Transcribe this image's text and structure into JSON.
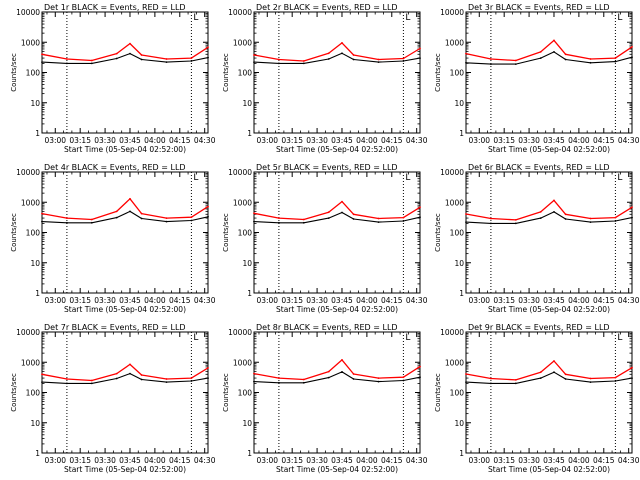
{
  "figure": {
    "panel_titles": [
      "Det 1r BLACK = Events, RED = LLD",
      "Det 2r BLACK = Events, RED = LLD",
      "Det 3r BLACK = Events, RED = LLD",
      "Det 4r BLACK = Events, RED = LLD",
      "Det 5r BLACK = Events, RED = LLD",
      "Det 6r BLACK = Events, RED = LLD",
      "Det 7r BLACK = Events, RED = LLD",
      "Det 8r BLACK = Events, RED = LLD",
      "Det 9r BLACK = Events, RED = LLD"
    ],
    "marker_label": "L",
    "colors": {
      "events": "#000000",
      "lld": "#ff0000",
      "axes": "#000000",
      "background": "#ffffff"
    }
  },
  "chart_data": [
    {
      "type": "line",
      "title": "Det 1r BLACK = Events, RED = LLD",
      "xlabel": "Start Time (05-Sep-04 02:52:00)",
      "ylabel": "Counts/sec",
      "x": [
        "02:52",
        "03:07",
        "03:22",
        "03:37",
        "03:45",
        "03:52",
        "04:07",
        "04:22",
        "04:32"
      ],
      "series": [
        {
          "name": "Events",
          "color": "#000000",
          "values": [
            220,
            200,
            200,
            290,
            420,
            270,
            220,
            240,
            310
          ]
        },
        {
          "name": "LLD",
          "color": "#ff0000",
          "values": [
            400,
            280,
            250,
            420,
            900,
            380,
            280,
            300,
            680
          ]
        }
      ],
      "xlim": [
        "02:52",
        "04:32"
      ],
      "xticks": [
        "03:00",
        "03:15",
        "03:30",
        "03:45",
        "04:00",
        "04:15",
        "04:30"
      ],
      "yscale": "log",
      "ylim": [
        1,
        10000
      ],
      "yticks": [
        "1",
        "10",
        "100",
        "1000",
        "10000"
      ],
      "vlines": [
        "03:07",
        "04:22"
      ],
      "grid": false,
      "legend": "none"
    },
    {
      "type": "line",
      "title": "Det 2r BLACK = Events, RED = LLD",
      "xlabel": "Start Time (05-Sep-04 02:52:00)",
      "ylabel": "Counts/sec",
      "x": [
        "02:52",
        "03:07",
        "03:22",
        "03:37",
        "03:45",
        "03:52",
        "04:07",
        "04:22",
        "04:32"
      ],
      "series": [
        {
          "name": "Events",
          "color": "#000000",
          "values": [
            220,
            200,
            200,
            280,
            430,
            270,
            220,
            240,
            300
          ]
        },
        {
          "name": "LLD",
          "color": "#ff0000",
          "values": [
            380,
            270,
            240,
            430,
            950,
            380,
            270,
            290,
            620
          ]
        }
      ],
      "xlim": [
        "02:52",
        "04:32"
      ],
      "xticks": [
        "03:00",
        "03:15",
        "03:30",
        "03:45",
        "04:00",
        "04:15",
        "04:30"
      ],
      "yscale": "log",
      "ylim": [
        1,
        10000
      ],
      "yticks": [
        "1",
        "10",
        "100",
        "1000",
        "10000"
      ],
      "vlines": [
        "03:07",
        "04:22"
      ],
      "grid": false,
      "legend": "none"
    },
    {
      "type": "line",
      "title": "Det 3r BLACK = Events, RED = LLD",
      "xlabel": "Start Time (05-Sep-04 02:52:00)",
      "ylabel": "Counts/sec",
      "x": [
        "02:52",
        "03:07",
        "03:22",
        "03:37",
        "03:45",
        "03:52",
        "04:07",
        "04:22",
        "04:32"
      ],
      "series": [
        {
          "name": "Events",
          "color": "#000000",
          "values": [
            210,
            190,
            190,
            300,
            480,
            270,
            210,
            230,
            320
          ]
        },
        {
          "name": "LLD",
          "color": "#ff0000",
          "values": [
            420,
            280,
            250,
            480,
            1150,
            400,
            280,
            300,
            700
          ]
        }
      ],
      "xlim": [
        "02:52",
        "04:32"
      ],
      "xticks": [
        "03:00",
        "03:15",
        "03:30",
        "03:45",
        "04:00",
        "04:15",
        "04:30"
      ],
      "yscale": "log",
      "ylim": [
        1,
        10000
      ],
      "yticks": [
        "1",
        "10",
        "100",
        "1000",
        "10000"
      ],
      "vlines": [
        "03:07",
        "04:22"
      ],
      "grid": false,
      "legend": "none"
    },
    {
      "type": "line",
      "title": "Det 4r BLACK = Events, RED = LLD",
      "xlabel": "Start Time (05-Sep-04 02:52:00)",
      "ylabel": "Counts/sec",
      "x": [
        "02:52",
        "03:07",
        "03:22",
        "03:37",
        "03:45",
        "03:52",
        "04:07",
        "04:22",
        "04:32"
      ],
      "series": [
        {
          "name": "Events",
          "color": "#000000",
          "values": [
            230,
            210,
            210,
            310,
            500,
            290,
            230,
            250,
            330
          ]
        },
        {
          "name": "LLD",
          "color": "#ff0000",
          "values": [
            420,
            300,
            270,
            500,
            1300,
            420,
            300,
            320,
            720
          ]
        }
      ],
      "xlim": [
        "02:52",
        "04:32"
      ],
      "xticks": [
        "03:00",
        "03:15",
        "03:30",
        "03:45",
        "04:00",
        "04:15",
        "04:30"
      ],
      "yscale": "log",
      "ylim": [
        1,
        10000
      ],
      "yticks": [
        "1",
        "10",
        "100",
        "1000",
        "10000"
      ],
      "vlines": [
        "03:07",
        "04:22"
      ],
      "grid": false,
      "legend": "none"
    },
    {
      "type": "line",
      "title": "Det 5r BLACK = Events, RED = LLD",
      "xlabel": "Start Time (05-Sep-04 02:52:00)",
      "ylabel": "Counts/sec",
      "x": [
        "02:52",
        "03:07",
        "03:22",
        "03:37",
        "03:45",
        "03:52",
        "04:07",
        "04:22",
        "04:32"
      ],
      "series": [
        {
          "name": "Events",
          "color": "#000000",
          "values": [
            230,
            210,
            210,
            300,
            460,
            280,
            220,
            240,
            320
          ]
        },
        {
          "name": "LLD",
          "color": "#ff0000",
          "values": [
            430,
            300,
            270,
            470,
            1050,
            400,
            290,
            310,
            680
          ]
        }
      ],
      "xlim": [
        "02:52",
        "04:32"
      ],
      "xticks": [
        "03:00",
        "03:15",
        "03:30",
        "03:45",
        "04:00",
        "04:15",
        "04:30"
      ],
      "yscale": "log",
      "ylim": [
        1,
        10000
      ],
      "yticks": [
        "1",
        "10",
        "100",
        "1000",
        "10000"
      ],
      "vlines": [
        "03:07",
        "04:22"
      ],
      "grid": false,
      "legend": "none"
    },
    {
      "type": "line",
      "title": "Det 6r BLACK = Events, RED = LLD",
      "xlabel": "Start Time (05-Sep-04 02:52:00)",
      "ylabel": "Counts/sec",
      "x": [
        "02:52",
        "03:07",
        "03:22",
        "03:37",
        "03:45",
        "03:52",
        "04:07",
        "04:22",
        "04:32"
      ],
      "series": [
        {
          "name": "Events",
          "color": "#000000",
          "values": [
            220,
            200,
            200,
            300,
            480,
            280,
            220,
            240,
            310
          ]
        },
        {
          "name": "LLD",
          "color": "#ff0000",
          "values": [
            410,
            290,
            260,
            480,
            1150,
            400,
            290,
            310,
            680
          ]
        }
      ],
      "xlim": [
        "02:52",
        "04:32"
      ],
      "xticks": [
        "03:00",
        "03:15",
        "03:30",
        "03:45",
        "04:00",
        "04:15",
        "04:30"
      ],
      "yscale": "log",
      "ylim": [
        1,
        10000
      ],
      "yticks": [
        "1",
        "10",
        "100",
        "1000",
        "10000"
      ],
      "vlines": [
        "03:07",
        "04:22"
      ],
      "grid": false,
      "legend": "none"
    },
    {
      "type": "line",
      "title": "Det 7r BLACK = Events, RED = LLD",
      "xlabel": "Start Time (05-Sep-04 02:52:00)",
      "ylabel": "Counts/sec",
      "x": [
        "02:52",
        "03:07",
        "03:22",
        "03:37",
        "03:45",
        "03:52",
        "04:07",
        "04:22",
        "04:32"
      ],
      "series": [
        {
          "name": "Events",
          "color": "#000000",
          "values": [
            220,
            200,
            200,
            290,
            420,
            270,
            220,
            240,
            300
          ]
        },
        {
          "name": "LLD",
          "color": "#ff0000",
          "values": [
            400,
            280,
            250,
            420,
            850,
            380,
            280,
            300,
            650
          ]
        }
      ],
      "xlim": [
        "02:52",
        "04:32"
      ],
      "xticks": [
        "03:00",
        "03:15",
        "03:30",
        "03:45",
        "04:00",
        "04:15",
        "04:30"
      ],
      "yscale": "log",
      "ylim": [
        1,
        10000
      ],
      "yticks": [
        "1",
        "10",
        "100",
        "1000",
        "10000"
      ],
      "vlines": [
        "03:07",
        "04:22"
      ],
      "grid": false,
      "legend": "none"
    },
    {
      "type": "line",
      "title": "Det 8r BLACK = Events, RED = LLD",
      "xlabel": "Start Time (05-Sep-04 02:52:00)",
      "ylabel": "Counts/sec",
      "x": [
        "02:52",
        "03:07",
        "03:22",
        "03:37",
        "03:45",
        "03:52",
        "04:07",
        "04:22",
        "04:32"
      ],
      "series": [
        {
          "name": "Events",
          "color": "#000000",
          "values": [
            230,
            210,
            210,
            310,
            480,
            280,
            230,
            250,
            320
          ]
        },
        {
          "name": "LLD",
          "color": "#ff0000",
          "values": [
            420,
            300,
            270,
            490,
            1200,
            410,
            300,
            320,
            720
          ]
        }
      ],
      "xlim": [
        "02:52",
        "04:32"
      ],
      "xticks": [
        "03:00",
        "03:15",
        "03:30",
        "03:45",
        "04:00",
        "04:15",
        "04:30"
      ],
      "yscale": "log",
      "ylim": [
        1,
        10000
      ],
      "yticks": [
        "1",
        "10",
        "100",
        "1000",
        "10000"
      ],
      "vlines": [
        "03:07",
        "04:22"
      ],
      "grid": false,
      "legend": "none"
    },
    {
      "type": "line",
      "title": "Det 9r BLACK = Events, RED = LLD",
      "xlabel": "Start Time (05-Sep-04 02:52:00)",
      "ylabel": "Counts/sec",
      "x": [
        "02:52",
        "03:07",
        "03:22",
        "03:37",
        "03:45",
        "03:52",
        "04:07",
        "04:22",
        "04:32"
      ],
      "series": [
        {
          "name": "Events",
          "color": "#000000",
          "values": [
            220,
            200,
            200,
            300,
            470,
            280,
            220,
            240,
            300
          ]
        },
        {
          "name": "LLD",
          "color": "#ff0000",
          "values": [
            410,
            290,
            260,
            470,
            1100,
            400,
            290,
            310,
            660
          ]
        }
      ],
      "xlim": [
        "02:52",
        "04:32"
      ],
      "xticks": [
        "03:00",
        "03:15",
        "03:30",
        "03:45",
        "04:00",
        "04:15",
        "04:30"
      ],
      "yscale": "log",
      "ylim": [
        1,
        10000
      ],
      "yticks": [
        "1",
        "10",
        "100",
        "1000",
        "10000"
      ],
      "vlines": [
        "03:07",
        "04:22"
      ],
      "grid": false,
      "legend": "none"
    }
  ]
}
